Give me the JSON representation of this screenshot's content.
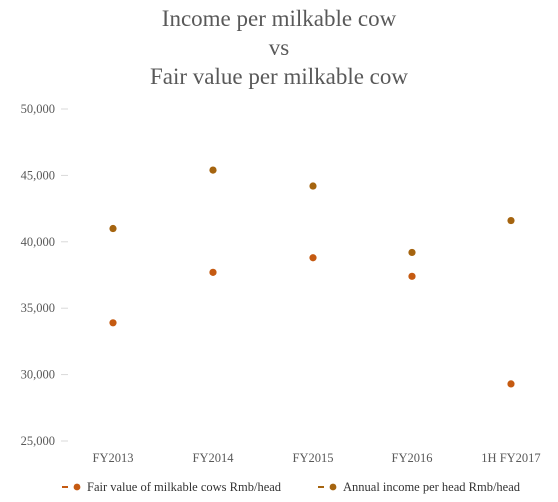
{
  "chart_data": {
    "type": "scatter",
    "title": [
      "Income per milkable cow",
      "vs",
      "Fair value per milkable cow"
    ],
    "categories": [
      "FY2013",
      "FY2014",
      "FY2015",
      "FY2016",
      "1H FY2017"
    ],
    "ylim": [
      25000,
      50000
    ],
    "yticks": [
      25000,
      30000,
      35000,
      40000,
      45000,
      50000
    ],
    "ytick_labels": [
      "25,000",
      "30,000",
      "35,000",
      "40,000",
      "45,000",
      "50,000"
    ],
    "grid": false,
    "legend_position": "bottom",
    "series": [
      {
        "name": "Fair value of milkable cows Rmb/head",
        "color": "#C55A11",
        "values": [
          33900,
          37700,
          38800,
          37400,
          29300
        ]
      },
      {
        "name": "Annual income per head Rmb/head",
        "color": "#A5640F",
        "values": [
          41000,
          45400,
          44200,
          39200,
          41600
        ]
      }
    ]
  }
}
